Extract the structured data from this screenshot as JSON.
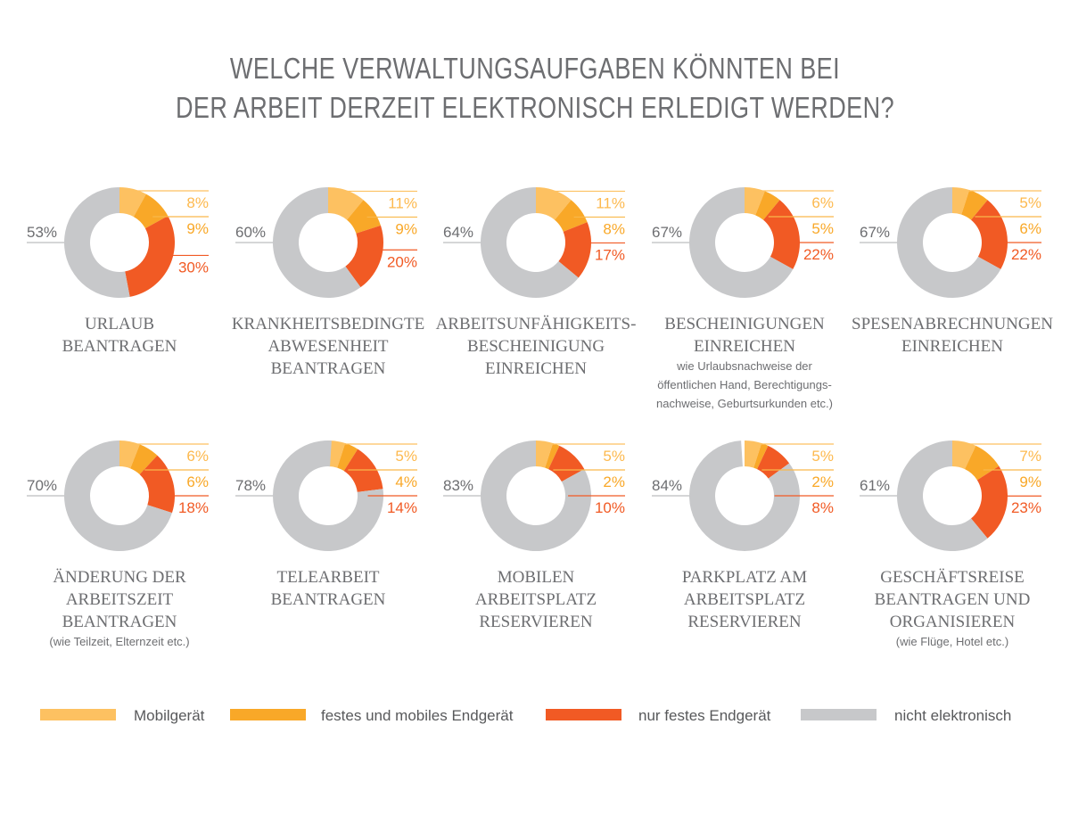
{
  "chart_data": {
    "type": "pie",
    "variant": "donut",
    "title": [
      "WELCHE VERWALTUNGSAUFGABEN KÖNNTEN BEI",
      "DER ARBEIT DERZEIT ELEKTRONISCH ERLEDIGT WERDEN?"
    ],
    "legend_position": "bottom",
    "series_names": [
      "Mobilgerät",
      "festes und mobiles Endgerät",
      "nur festes Endgerät",
      "nicht elektronisch"
    ],
    "colors": [
      "#FDC161",
      "#F9A828",
      "#F15A24",
      "#C7C8CA"
    ],
    "charts": [
      {
        "label": [
          "URLAUB",
          "BEANTRAGEN"
        ],
        "note": [],
        "values": [
          8,
          9,
          30,
          53
        ]
      },
      {
        "label": [
          "KRANKHEITSBEDINGTE",
          "ABWESENHEIT",
          "BEANTRAGEN"
        ],
        "note": [],
        "values": [
          11,
          9,
          20,
          60
        ]
      },
      {
        "label": [
          "ARBEITSUNFÄHIGKEITS-",
          "BESCHEINIGUNG",
          "EINREICHEN"
        ],
        "note": [],
        "values": [
          11,
          8,
          17,
          64
        ]
      },
      {
        "label": [
          "BESCHEINIGUNGEN",
          "EINREICHEN"
        ],
        "note": [
          "wie Urlaubsnachweise der",
          "öffentlichen Hand, Berechtigungs-",
          "nachweise, Geburtsurkunden etc.)"
        ],
        "values": [
          6,
          5,
          22,
          67
        ]
      },
      {
        "label": [
          "SPESENABRECHNUNGEN",
          "EINREICHEN"
        ],
        "note": [],
        "values": [
          5,
          6,
          22,
          67
        ]
      },
      {
        "label": [
          "ÄNDERUNG DER",
          "ARBEITSZEIT",
          "BEANTRAGEN"
        ],
        "note": [
          "(wie Teilzeit, Elternzeit etc.)"
        ],
        "values": [
          6,
          6,
          18,
          70
        ]
      },
      {
        "label": [
          "TELEARBEIT",
          "BEANTRAGEN"
        ],
        "note": [],
        "values": [
          5,
          4,
          14,
          78
        ]
      },
      {
        "label": [
          "MOBILEN",
          "ARBEITSPLATZ",
          "RESERVIEREN"
        ],
        "note": [],
        "values": [
          5,
          2,
          10,
          83
        ]
      },
      {
        "label": [
          "PARKPLATZ AM",
          "ARBEITSPLATZ",
          "RESERVIEREN"
        ],
        "note": [],
        "values": [
          5,
          2,
          8,
          84
        ]
      },
      {
        "label": [
          "GESCHÄFTSREISE",
          "BEANTRAGEN UND",
          "ORGANISIEREN"
        ],
        "note": [
          "(wie Flüge, Hotel etc.)"
        ],
        "values": [
          7,
          9,
          23,
          61
        ]
      }
    ],
    "unit": "%"
  }
}
